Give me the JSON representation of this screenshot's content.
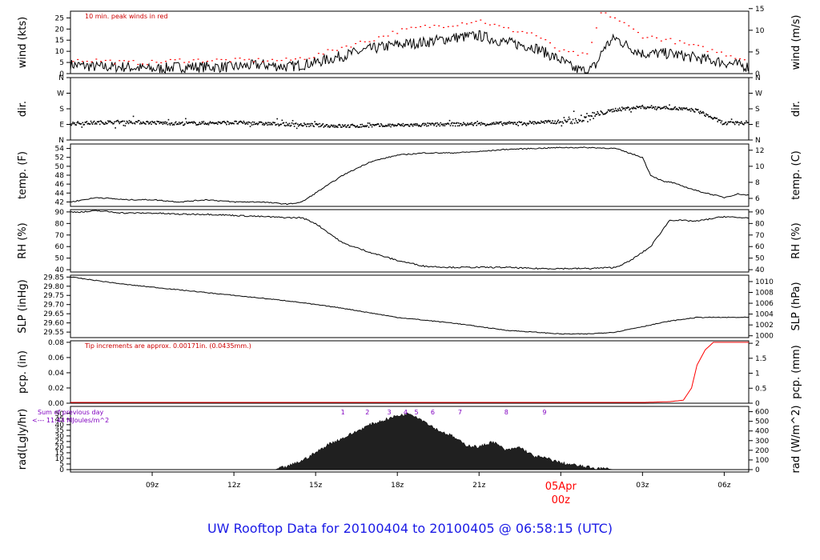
{
  "footer_title": "UW Rooftop Data for 20100404  to  20100405 @ 06:58:15  (UTC)",
  "colors": {
    "line": "#000000",
    "peak": "#ff0000",
    "pcp": "#ff0000",
    "note_red": "#cc0000",
    "note_purple": "#8000c0",
    "date_label": "#ff0000",
    "radiation_fill": "#202020",
    "footer": "#1a1ae6"
  },
  "chart_data": [
    {
      "type": "line",
      "panel": "wind",
      "ylabel": "wind (kts)",
      "ylabel_right": "wind (m/s)",
      "ylim": [
        0,
        28
      ],
      "yticks": [
        0,
        5,
        10,
        15,
        20,
        25
      ],
      "yticks_right": [
        0,
        5,
        10,
        15
      ],
      "annotation": "10 min. peak winds in red",
      "series": [
        {
          "role": "mean",
          "x": [
            6.0,
            7.0,
            8.0,
            9.0,
            10.0,
            11.0,
            12.0,
            13.0,
            14.0,
            15.0,
            16.0,
            17.0,
            18.0,
            19.0,
            20.0,
            21.0,
            22.0,
            23.0,
            24.0,
            24.5,
            25.0,
            25.3,
            25.6,
            26.0,
            26.5,
            27.0,
            28.0,
            29.0,
            30.0,
            30.9
          ],
          "values": [
            4,
            3,
            3,
            2,
            3,
            3,
            3,
            4,
            3,
            5,
            8,
            11,
            13,
            14,
            16,
            17,
            14,
            12,
            6,
            2,
            1,
            4,
            12,
            16,
            12,
            9,
            9,
            7,
            5,
            3
          ]
        },
        {
          "role": "peak",
          "x": [
            6.0,
            7.0,
            8.0,
            9.0,
            10.0,
            11.0,
            12.0,
            13.0,
            14.0,
            15.0,
            16.0,
            17.0,
            18.0,
            19.0,
            20.0,
            21.0,
            22.0,
            23.0,
            24.0,
            25.0,
            25.5,
            26.0,
            27.0,
            28.0,
            29.0,
            30.0,
            30.9
          ],
          "values": [
            6,
            6,
            5,
            5,
            6,
            6,
            6,
            6,
            6,
            8,
            12,
            15,
            19,
            21,
            22,
            24,
            20,
            18,
            10,
            8,
            28,
            25,
            17,
            15,
            12,
            9,
            6
          ]
        }
      ]
    },
    {
      "type": "scatter",
      "panel": "dir",
      "ylabel": "dir.",
      "ylabel_right": "dir.",
      "y_categories": [
        "N",
        "E",
        "S",
        "W",
        "N"
      ],
      "y_categories_right": [
        "N",
        "E",
        "S",
        "W",
        "N"
      ],
      "x": [
        6.0,
        8.0,
        10.0,
        12.0,
        14.0,
        16.0,
        18.0,
        20.0,
        22.0,
        24.0,
        25.0,
        26.0,
        27.0,
        28.0,
        29.0,
        30.0,
        30.9
      ],
      "values_degrees": [
        95,
        105,
        95,
        100,
        90,
        80,
        85,
        90,
        95,
        105,
        130,
        175,
        190,
        185,
        170,
        95,
        100
      ]
    },
    {
      "type": "line",
      "panel": "temp",
      "ylabel": "temp. (F)",
      "ylabel_right": "temp. (C)",
      "ylim": [
        41,
        55
      ],
      "yticks": [
        42,
        44,
        46,
        48,
        50,
        52,
        54
      ],
      "yticks_right": [
        6,
        8,
        10,
        12
      ],
      "x": [
        6.0,
        7.0,
        8.0,
        9.0,
        10.0,
        11.0,
        12.0,
        13.0,
        14.0,
        14.5,
        15.0,
        16.0,
        17.0,
        18.0,
        19.0,
        20.0,
        21.0,
        22.0,
        23.0,
        24.0,
        25.0,
        26.0,
        27.0,
        27.3,
        27.8,
        28.0,
        29.0,
        30.0,
        30.5,
        30.9
      ],
      "values": [
        42.0,
        43.0,
        42.5,
        42.5,
        42.0,
        42.5,
        42.0,
        42.0,
        41.5,
        42.0,
        44.0,
        48.0,
        51.0,
        52.5,
        53.0,
        53.0,
        53.3,
        53.8,
        54.0,
        54.2,
        54.2,
        54.0,
        52.0,
        48.0,
        46.5,
        46.5,
        44.5,
        43.0,
        43.8,
        43.5
      ]
    },
    {
      "type": "line",
      "panel": "rh",
      "ylabel": "RH (%)",
      "ylabel_right": "RH (%)",
      "ylim": [
        38,
        92
      ],
      "yticks": [
        40,
        50,
        60,
        70,
        80,
        90
      ],
      "yticks_right": [
        40,
        50,
        60,
        70,
        80,
        90
      ],
      "x": [
        6.0,
        6.5,
        7.0,
        8.0,
        9.0,
        10.0,
        11.0,
        12.0,
        13.0,
        14.0,
        14.5,
        15.0,
        16.0,
        17.0,
        18.0,
        19.0,
        20.0,
        21.0,
        22.0,
        23.0,
        24.0,
        25.0,
        26.0,
        26.5,
        27.0,
        27.3,
        28.0,
        29.0,
        30.0,
        30.5,
        30.9
      ],
      "values": [
        90,
        90,
        91,
        89,
        89,
        88,
        88,
        87,
        86,
        85,
        85,
        80,
        63,
        55,
        48,
        43,
        42,
        42,
        42,
        41,
        41,
        41,
        42,
        47,
        55,
        60,
        83,
        82,
        86,
        85,
        85
      ]
    },
    {
      "type": "line",
      "panel": "slp",
      "ylabel": "SLP (inHg)",
      "ylabel_right": "SLP (hPa)",
      "ylim": [
        29.52,
        29.86
      ],
      "yticks": [
        29.55,
        29.6,
        29.65,
        29.7,
        29.75,
        29.8,
        29.85
      ],
      "yticks_right": [
        1000,
        1002,
        1004,
        1006,
        1008,
        1010
      ],
      "x": [
        6.0,
        8.0,
        10.0,
        12.0,
        14.0,
        16.0,
        18.0,
        20.0,
        22.0,
        24.0,
        25.0,
        26.0,
        27.0,
        28.0,
        29.0,
        30.0,
        30.9
      ],
      "values": [
        29.85,
        29.81,
        29.78,
        29.75,
        29.72,
        29.68,
        29.63,
        29.6,
        29.56,
        29.54,
        29.54,
        29.55,
        29.58,
        29.61,
        29.63,
        29.63,
        29.63
      ]
    },
    {
      "type": "line",
      "panel": "pcp",
      "ylabel": "pcp. (in)",
      "ylabel_right": "pcp. (mm)",
      "ylim": [
        0,
        0.082
      ],
      "yticks": [
        0.0,
        0.02,
        0.04,
        0.06,
        0.08
      ],
      "yticks_right": [
        0,
        0.5,
        1,
        1.5,
        2
      ],
      "annotation": "Tip increments are approx. 0.00171in. (0.0435mm.)",
      "x": [
        6.0,
        10.0,
        20.0,
        27.0,
        28.0,
        28.5,
        28.8,
        29.0,
        29.3,
        29.6,
        30.0,
        30.9
      ],
      "values": [
        0.001,
        0.001,
        0.001,
        0.001,
        0.002,
        0.004,
        0.02,
        0.05,
        0.07,
        0.08,
        0.08,
        0.08
      ]
    },
    {
      "type": "area",
      "panel": "rad",
      "ylabel": "rad(Lgly/hr)",
      "ylabel_right": "rad (W/m^2)",
      "ylim": [
        0,
        52
      ],
      "yticks": [
        0,
        5,
        10,
        15,
        20,
        25,
        30,
        35,
        40,
        45,
        50
      ],
      "yticks_right": [
        0,
        100,
        200,
        300,
        400,
        500,
        600
      ],
      "annotation_lines": [
        "Sum of previous day",
        "<--- 11.44 MJoules/m^2"
      ],
      "hour_markers": [
        "1",
        "2",
        "3",
        "4",
        "5",
        "6",
        "7",
        "8",
        "9"
      ],
      "x": [
        6.0,
        12.0,
        13.5,
        14.0,
        14.5,
        15.0,
        15.5,
        16.0,
        16.5,
        17.0,
        17.5,
        18.0,
        18.5,
        19.0,
        19.5,
        20.0,
        20.5,
        21.0,
        21.5,
        22.0,
        22.5,
        23.0,
        23.5,
        24.0,
        24.5,
        25.0,
        26.0,
        30.9
      ],
      "values": [
        0,
        0,
        0,
        3,
        8,
        15,
        23,
        28,
        34,
        40,
        44,
        48,
        50,
        43,
        35,
        30,
        22,
        20,
        25,
        17,
        20,
        12,
        10,
        6,
        4,
        2,
        0,
        0
      ]
    }
  ],
  "x_axis": {
    "tick_labels": [
      "09z",
      "12z",
      "15z",
      "18z",
      "21z",
      "00z",
      "03z",
      "06z"
    ],
    "date_label": "05Apr"
  }
}
